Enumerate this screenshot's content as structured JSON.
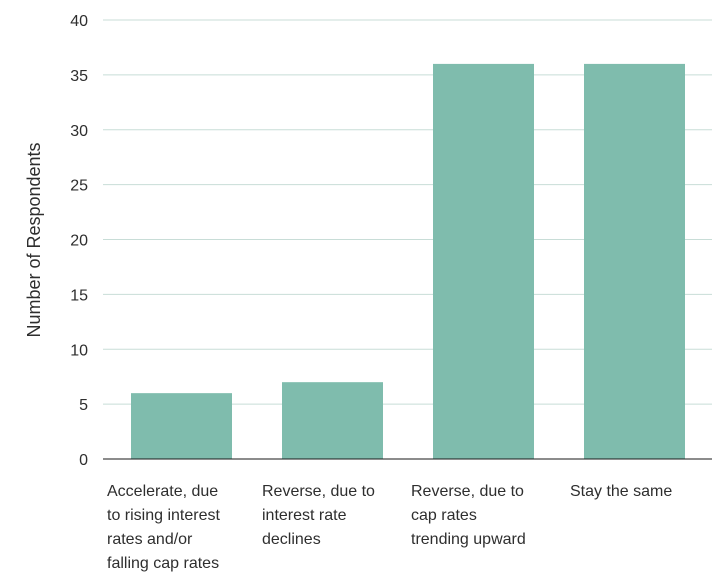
{
  "chart_data": {
    "type": "bar",
    "title": "",
    "xlabel": "",
    "ylabel": "Number of Respondents",
    "ylim": [
      0,
      40
    ],
    "yticks": [
      0,
      5,
      10,
      15,
      20,
      25,
      30,
      35,
      40
    ],
    "grid": true,
    "categories": [
      "Accelerate, due to rising interest rates and/or falling cap rates",
      "Reverse, due to interest rate declines",
      "Reverse, due to cap rates trending upward",
      "Stay the same"
    ],
    "category_lines": [
      [
        "Accelerate, due",
        "to rising interest",
        "rates and/or",
        "falling cap rates"
      ],
      [
        "Reverse, due to",
        "interest rate",
        "declines"
      ],
      [
        "Reverse, due to",
        "cap rates",
        "trending upward"
      ],
      [
        "Stay the same"
      ]
    ],
    "values": [
      6,
      7,
      36,
      36
    ],
    "colors": {
      "bar": "#7fbcad",
      "grid": "#c8ddd7",
      "axis": "#1a1a1a",
      "text": "#2e2e2e"
    }
  }
}
